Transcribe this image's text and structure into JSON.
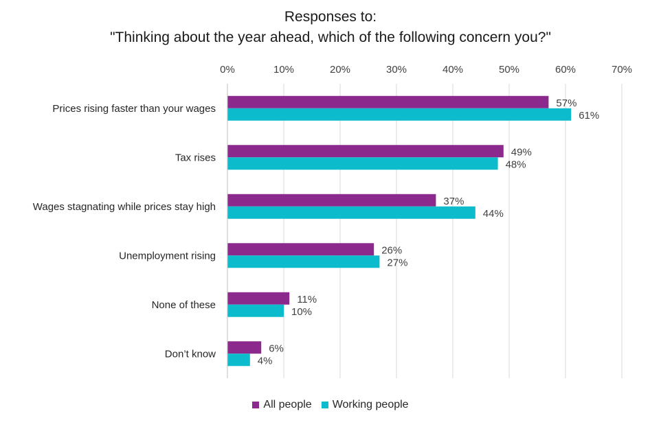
{
  "title": {
    "line1": "Responses to:",
    "line2": "\"Thinking about the year ahead, which of the following concern you?\""
  },
  "chart_data": {
    "type": "bar",
    "orientation": "horizontal",
    "categories": [
      "Prices rising faster than your wages",
      "Tax rises",
      "Wages stagnating while prices stay high",
      "Unemployment rising",
      "None of these",
      "Don’t know"
    ],
    "series": [
      {
        "name": "All people",
        "color": "#8b2a8c",
        "values": [
          57,
          49,
          37,
          26,
          11,
          6
        ]
      },
      {
        "name": "Working people",
        "color": "#0dbccc",
        "values": [
          61,
          48,
          44,
          27,
          10,
          4
        ]
      }
    ],
    "x_ticks": [
      "0%",
      "10%",
      "20%",
      "30%",
      "40%",
      "50%",
      "60%",
      "70%"
    ],
    "xlim": [
      0,
      70
    ],
    "value_suffix": "%",
    "axis_position": "top",
    "grid": true,
    "legend_position": "bottom"
  }
}
